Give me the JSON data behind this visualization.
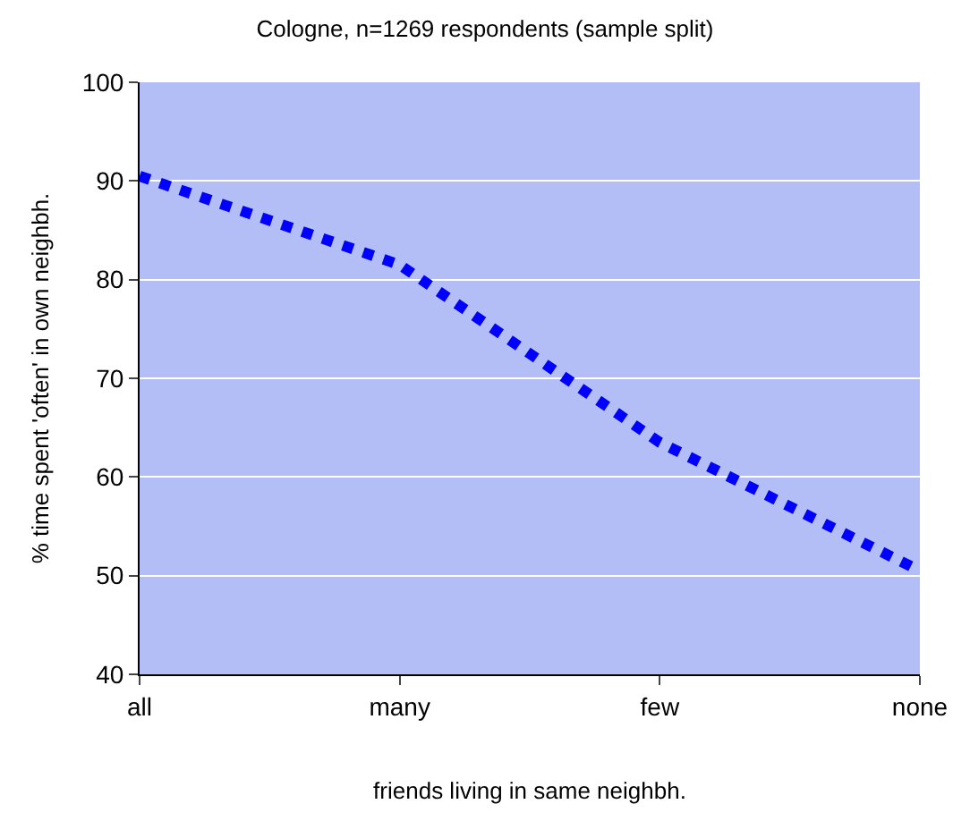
{
  "chart_data": {
    "type": "line",
    "title": "Cologne, n=1269 respondents (sample split)",
    "xlabel": "friends living in same neighbh.",
    "ylabel": "% time spent 'often' in own neighbh.",
    "categories": [
      "all",
      "many",
      "few",
      "none"
    ],
    "series": [
      {
        "color": "#0000ff",
        "values": [
          90.5,
          81.5,
          63.5,
          50.5
        ]
      }
    ],
    "ylim": [
      40,
      100
    ],
    "yticks": [
      40,
      50,
      60,
      70,
      80,
      90,
      100
    ],
    "grid": "y",
    "marker": "none",
    "line_style": "dotted"
  }
}
